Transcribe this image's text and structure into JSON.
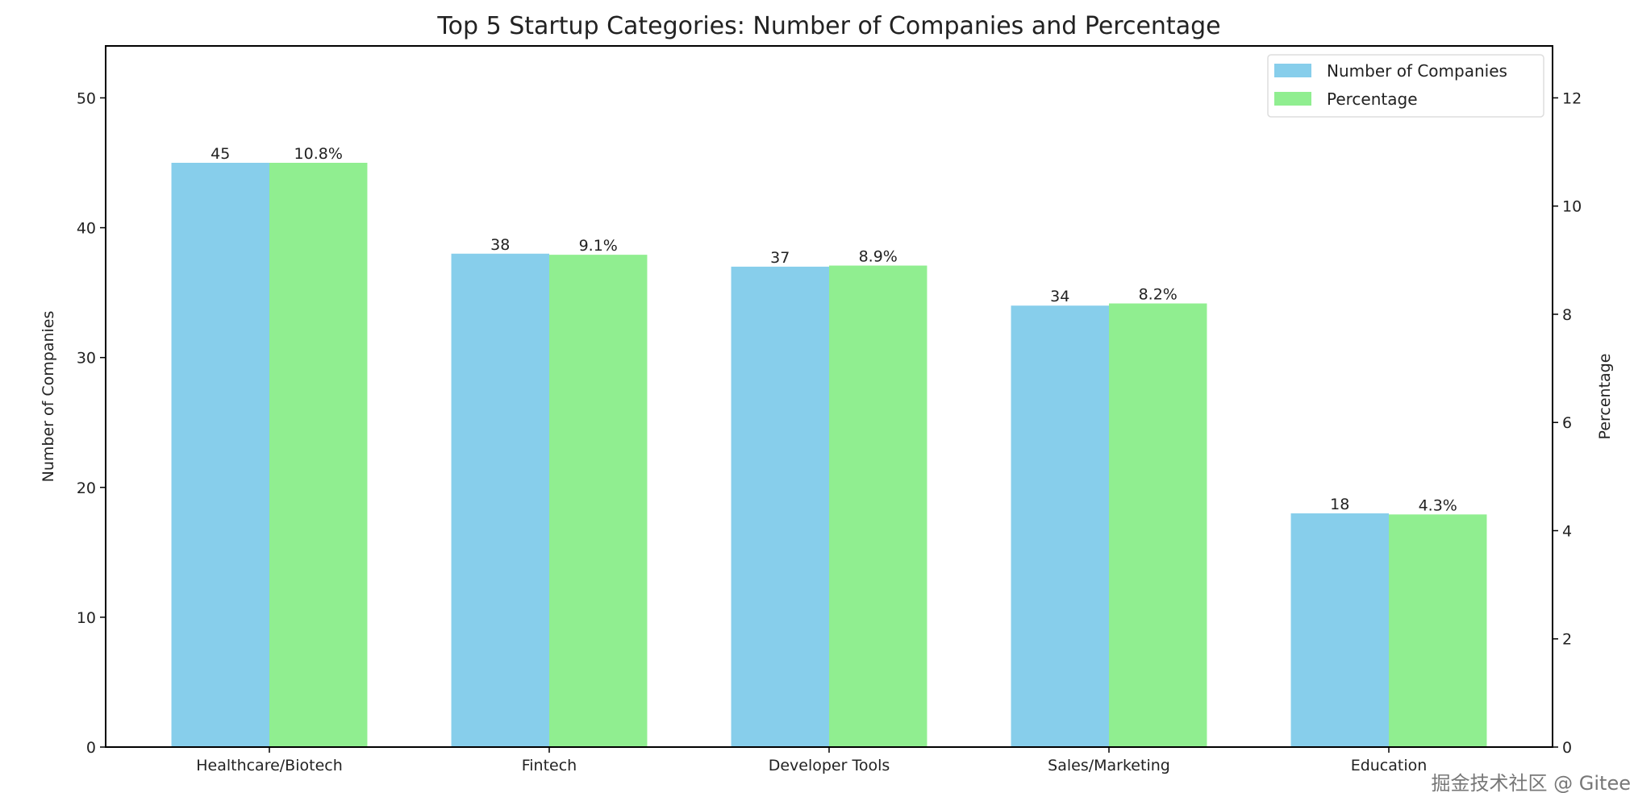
{
  "chart_data": {
    "type": "bar",
    "title": "Top 5 Startup Categories: Number of Companies and Percentage",
    "categories": [
      "Healthcare/Biotech",
      "Fintech",
      "Developer Tools",
      "Sales/Marketing",
      "Education"
    ],
    "series": [
      {
        "name": "Number of Companies",
        "axis": "left",
        "color": "#87CEEB",
        "values": [
          45,
          38,
          37,
          34,
          18
        ],
        "labels": [
          "45",
          "38",
          "37",
          "34",
          "18"
        ]
      },
      {
        "name": "Percentage",
        "axis": "right",
        "color": "#90EE90",
        "values": [
          10.8,
          9.1,
          8.9,
          8.2,
          4.3
        ],
        "labels": [
          "10.8%",
          "9.1%",
          "8.9%",
          "8.2%",
          "4.3%"
        ]
      }
    ],
    "ylabel": "Number of Companies",
    "y2label": "Percentage",
    "ylim": [
      0,
      54
    ],
    "y2lim": [
      0,
      12.96
    ],
    "yticks": [
      0,
      10,
      20,
      30,
      40,
      50
    ],
    "y2ticks": [
      0,
      2,
      4,
      6,
      8,
      10,
      12
    ],
    "grid": false,
    "legend_position": "top-right"
  },
  "watermark": "掘金技术社区 @ Gitee"
}
